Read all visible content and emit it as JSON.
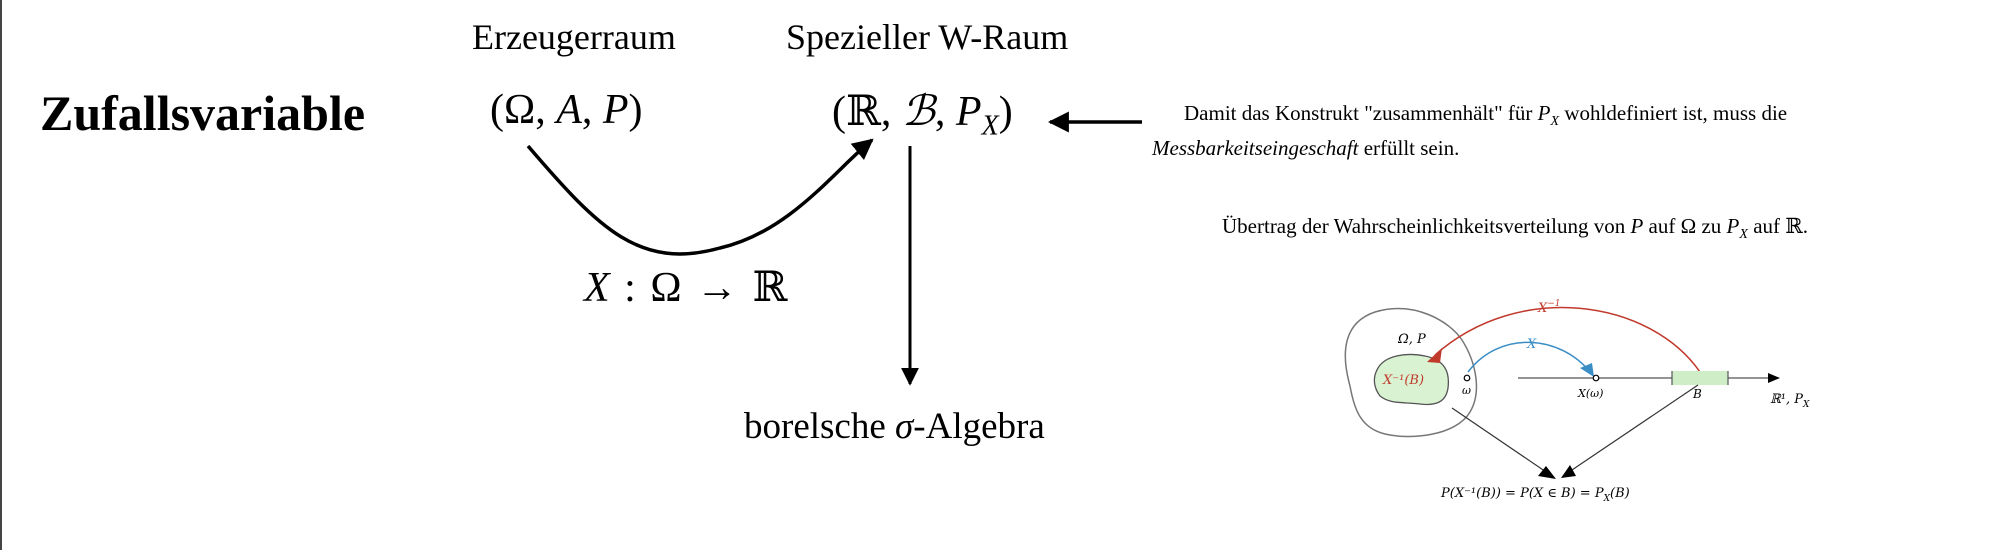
{
  "title": "Zufallsvariable",
  "headings": {
    "erzeuger": "Erzeugerraum",
    "spezieller": "Spezieller W-Raum"
  },
  "spaces": {
    "erzeuger": {
      "open": "(Ω, ",
      "A": "A",
      "sep": ", ",
      "P": "P",
      "close": ")"
    },
    "spezieller": {
      "open": "(ℝ, ",
      "B": "ℬ",
      "sep": ", ",
      "P": "P",
      "sub": "X",
      "close": ")"
    }
  },
  "mapping": {
    "X": "X",
    "rest": " : Ω → ℝ"
  },
  "borel": {
    "prefix": "borelsche ",
    "sigma": "σ",
    "suffix": "-Algebra"
  },
  "notes": {
    "measurability": {
      "part1": "Damit das Konstrukt \"zusammenhält\" für ",
      "PX": "P",
      "PXsub": "X",
      "part2": " wohldefiniert ist, muss die ",
      "emph": "Messbarkeitseingeschaft",
      "part3": " erfüllt sein."
    },
    "transfer": {
      "part1": "Übertrag der Wahrscheinlichkeitsverteilung von ",
      "P": "P",
      "part2": " auf Ω zu ",
      "PX": "P",
      "PXsub": "X",
      "part3": " auf ℝ."
    }
  },
  "figure": {
    "omega_p": "Ω, P",
    "x_inv_label": "X",
    "x_inv_sup": "−1",
    "x_label": "X",
    "preimage": "X⁻¹(B)",
    "omega": "ω",
    "x_omega": "X(ω)",
    "b": "B",
    "r1": "ℝ¹, P",
    "r1_sub": "X",
    "formula": "P(X⁻¹(B)) = P(X ∈ B) = P",
    "formula_sub": "X",
    "formula_tail": "(B)",
    "colors": {
      "red": "#c0392b",
      "blue": "#3a8ec5",
      "green_fill": "#d9f2d2",
      "green_bar": "#cfeec7"
    }
  }
}
